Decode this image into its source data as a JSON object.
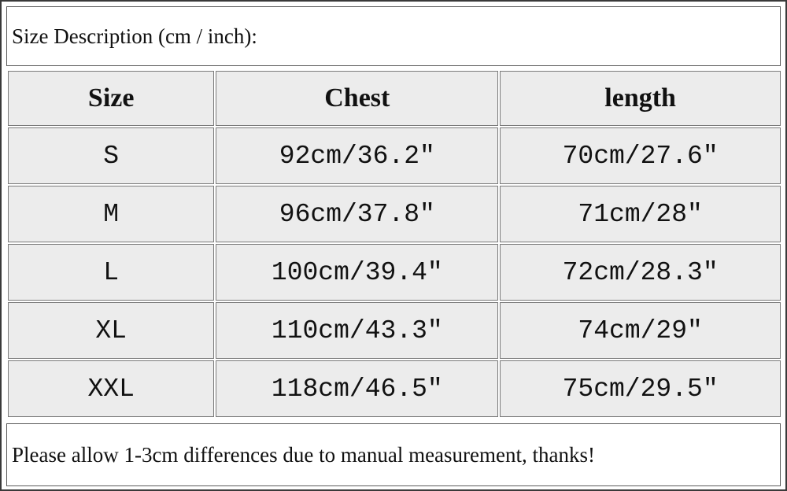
{
  "title": "Size Description (cm / inch):",
  "table": {
    "headers": [
      "Size",
      "Chest",
      "length"
    ],
    "rows": [
      [
        "S",
        "92cm/36.2\"",
        "70cm/27.6\""
      ],
      [
        "M",
        "96cm/37.8\"",
        "71cm/28\""
      ],
      [
        "L",
        "100cm/39.4\"",
        "72cm/28.3\""
      ],
      [
        "XL",
        "110cm/43.3\"",
        "74cm/29\""
      ],
      [
        "XXL",
        "118cm/46.5\"",
        "75cm/29.5\""
      ]
    ]
  },
  "note": "Please allow 1-3cm differences due to manual measurement, thanks!"
}
